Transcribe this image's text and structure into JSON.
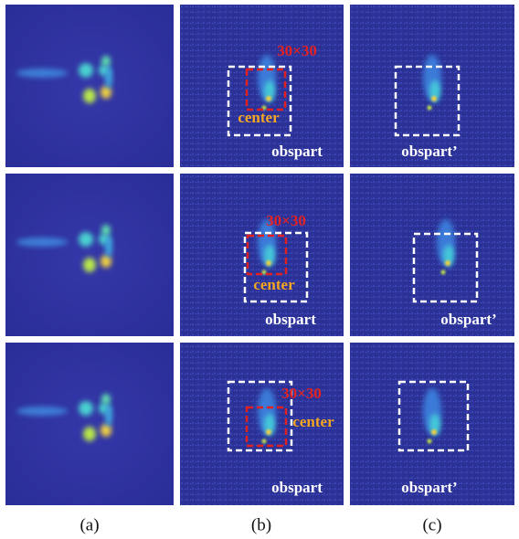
{
  "rows": [
    {
      "b": {
        "box_label": "30×30",
        "center_label": "center",
        "part_label": "obspart"
      },
      "c": {
        "part_label": "obspart’"
      }
    },
    {
      "b": {
        "box_label": "30×30",
        "center_label": "center",
        "part_label": "obspart"
      },
      "c": {
        "part_label": "obspart’"
      }
    },
    {
      "b": {
        "box_label": "30×30",
        "center_label": "center",
        "part_label": "obspart"
      },
      "c": {
        "part_label": "obspart’"
      }
    }
  ],
  "captions": [
    "(a)",
    "(b)",
    "(c)"
  ]
}
